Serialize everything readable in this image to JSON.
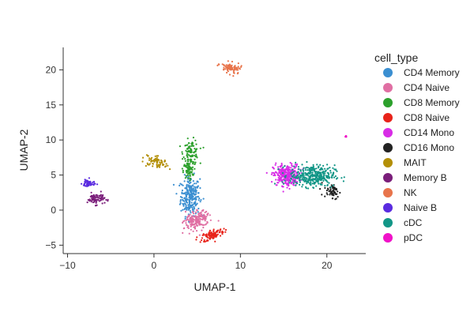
{
  "chart_data": {
    "type": "scatter",
    "xlabel": "UMAP-1",
    "ylabel": "UMAP-2",
    "xlim": [
      -10.5,
      24.5
    ],
    "ylim": [
      -6.2,
      23.2
    ],
    "xticks": [
      -10,
      0,
      10,
      20
    ],
    "xtick_labels": [
      "−10",
      "0",
      "10",
      "20"
    ],
    "yticks": [
      -5,
      0,
      5,
      10,
      15,
      20
    ],
    "ytick_labels": [
      "−5",
      "0",
      "5",
      "10",
      "15",
      "20"
    ],
    "grid": false,
    "legend": {
      "title": "cell_type",
      "placement": "right",
      "entries": [
        "CD4 Memory",
        "CD4 Naive",
        "CD8 Memory",
        "CD8 Naive",
        "CD14 Mono",
        "CD16 Mono",
        "MAIT",
        "Memory B",
        "NK",
        "Naive B",
        "cDC",
        "pDC"
      ]
    },
    "series": [
      {
        "name": "CD4 Memory",
        "color": "#3b8fd1",
        "n": 260,
        "clusters": [
          {
            "cx": 4.2,
            "cy": 2.0,
            "sx": 0.55,
            "sy": 1.4,
            "n": 260
          }
        ]
      },
      {
        "name": "CD4 Naive",
        "color": "#e06fa3",
        "n": 180,
        "clusters": [
          {
            "cx": 5.0,
            "cy": -1.5,
            "sx": 0.9,
            "sy": 0.55,
            "rot": 0.6,
            "n": 180
          }
        ]
      },
      {
        "name": "CD8 Memory",
        "color": "#2ca02c",
        "n": 170,
        "clusters": [
          {
            "cx": 4.3,
            "cy": 8.2,
            "sx": 0.45,
            "sy": 0.9,
            "n": 110
          },
          {
            "cx": 4.0,
            "cy": 5.6,
            "sx": 0.3,
            "sy": 0.6,
            "n": 60
          }
        ]
      },
      {
        "name": "CD8 Naive",
        "color": "#e8231a",
        "n": 110,
        "clusters": [
          {
            "cx": 6.8,
            "cy": -3.5,
            "sx": 0.7,
            "sy": 0.35,
            "rot": 0.4,
            "n": 110
          }
        ]
      },
      {
        "name": "CD14 Mono",
        "color": "#d82ce6",
        "n": 300,
        "clusters": [
          {
            "cx": 15.3,
            "cy": 5.0,
            "sx": 0.75,
            "sy": 0.75,
            "n": 300
          }
        ]
      },
      {
        "name": "CD16 Mono",
        "color": "#222222",
        "n": 60,
        "clusters": [
          {
            "cx": 20.7,
            "cy": 2.5,
            "sx": 0.5,
            "sy": 0.4,
            "rot": -0.8,
            "n": 60
          }
        ]
      },
      {
        "name": "MAIT",
        "color": "#b38f07",
        "n": 70,
        "clusters": [
          {
            "cx": 0.3,
            "cy": 6.9,
            "sx": 0.7,
            "sy": 0.35,
            "rot": -0.4,
            "n": 70
          }
        ]
      },
      {
        "name": "Memory B",
        "color": "#7a1e7a",
        "n": 80,
        "clusters": [
          {
            "cx": -6.7,
            "cy": 1.6,
            "sx": 0.5,
            "sy": 0.4,
            "n": 80
          }
        ]
      },
      {
        "name": "NK",
        "color": "#e8744b",
        "n": 90,
        "clusters": [
          {
            "cx": 8.9,
            "cy": 20.2,
            "sx": 0.6,
            "sy": 0.35,
            "rot": -0.4,
            "n": 90
          }
        ]
      },
      {
        "name": "Naive B",
        "color": "#5a2be0",
        "n": 50,
        "clusters": [
          {
            "cx": -7.6,
            "cy": 3.8,
            "sx": 0.35,
            "sy": 0.3,
            "n": 50
          }
        ]
      },
      {
        "name": "cDC",
        "color": "#129687",
        "n": 360,
        "clusters": [
          {
            "cx": 18.3,
            "cy": 4.9,
            "sx": 1.3,
            "sy": 0.75,
            "n": 360
          }
        ]
      },
      {
        "name": "pDC",
        "color": "#f012c8",
        "n": 6,
        "clusters": [
          {
            "cx": 22.2,
            "cy": 10.5,
            "sx": 0.08,
            "sy": 0.08,
            "n": 6
          }
        ]
      }
    ]
  }
}
